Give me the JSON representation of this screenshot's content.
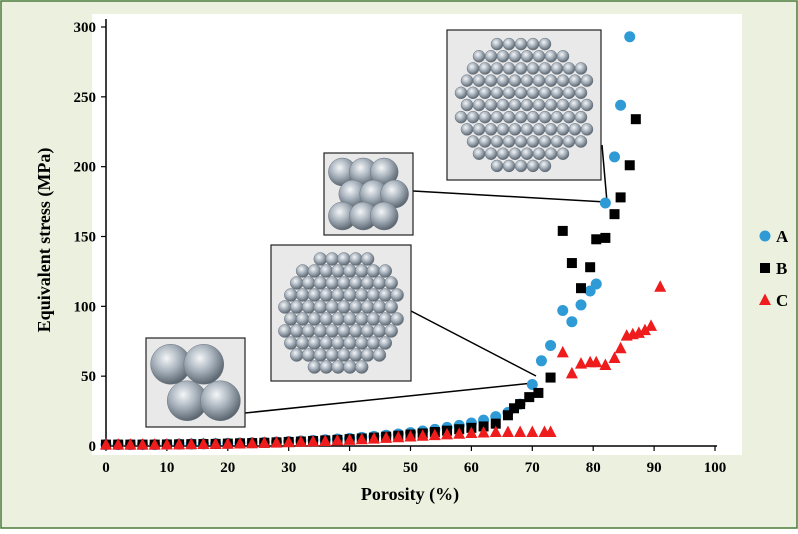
{
  "chart_data": {
    "type": "scatter",
    "xlabel": "Porosity (%)",
    "ylabel": "Equivalent stress (MPa)",
    "xlim": [
      0,
      100
    ],
    "xticks": [
      0,
      10,
      20,
      30,
      40,
      50,
      60,
      70,
      80,
      90,
      100
    ],
    "ylim": [
      0,
      300
    ],
    "yticks": [
      0,
      50,
      100,
      150,
      200,
      250,
      300
    ],
    "grid": false,
    "legend": "right",
    "series": [
      {
        "name": "A",
        "color": "#2e9bd6",
        "marker": "circle",
        "x": [
          0,
          2,
          4,
          6,
          8,
          10,
          12,
          14,
          16,
          18,
          20,
          22,
          24,
          26,
          28,
          30,
          32,
          34,
          36,
          38,
          40,
          42,
          44,
          46,
          48,
          50,
          52,
          54,
          56,
          58,
          60,
          62,
          64,
          66,
          68,
          70,
          71.5,
          73,
          75,
          76.5,
          78,
          79.5,
          80.5,
          82,
          83.5,
          84.5,
          86
        ],
        "values": [
          1,
          1,
          1,
          1,
          1,
          1.2,
          1.3,
          1.4,
          1.5,
          1.7,
          1.9,
          2.1,
          2.3,
          2.6,
          2.9,
          3.2,
          3.6,
          4,
          4.5,
          5,
          5.5,
          6.2,
          6.9,
          7.7,
          8.6,
          9.6,
          10.7,
          11.9,
          13.3,
          14.8,
          16.5,
          18.5,
          21,
          24,
          30,
          44,
          61,
          72,
          97,
          89,
          101,
          111,
          116,
          174,
          207,
          244,
          293
        ]
      },
      {
        "name": "B",
        "color": "#000000",
        "marker": "square",
        "x": [
          0,
          2,
          4,
          6,
          8,
          10,
          12,
          14,
          16,
          18,
          20,
          22,
          24,
          26,
          28,
          30,
          32,
          34,
          36,
          38,
          40,
          42,
          44,
          46,
          48,
          50,
          52,
          54,
          56,
          58,
          60,
          62,
          64,
          66,
          67,
          68,
          69.5,
          71,
          73,
          75,
          76.5,
          78,
          79.5,
          80.5,
          82,
          83.5,
          84.5,
          86,
          87
        ],
        "values": [
          1,
          1,
          1,
          1,
          1,
          1.1,
          1.2,
          1.3,
          1.4,
          1.5,
          1.7,
          1.9,
          2.1,
          2.3,
          2.6,
          2.9,
          3.2,
          3.6,
          4,
          4.4,
          4.9,
          5.4,
          6,
          6.7,
          7.4,
          8.2,
          9,
          10,
          11,
          12,
          13,
          14,
          16,
          22,
          27,
          30,
          35,
          38,
          49,
          154,
          131,
          113,
          128,
          148,
          149,
          166,
          178,
          201,
          234
        ]
      },
      {
        "name": "C",
        "color": "#ee1c1c",
        "marker": "triangle",
        "x": [
          0,
          2,
          4,
          6,
          8,
          10,
          12,
          14,
          16,
          18,
          20,
          22,
          24,
          26,
          28,
          30,
          32,
          34,
          36,
          38,
          40,
          42,
          44,
          46,
          48,
          50,
          52,
          54,
          56,
          58,
          60,
          62,
          64,
          66,
          68,
          70,
          72,
          73,
          75,
          76.5,
          78,
          79.5,
          80.5,
          82,
          83.5,
          84.5,
          85.5,
          86.5,
          87.5,
          88.5,
          89.5,
          91
        ],
        "values": [
          1,
          1,
          1,
          1,
          1,
          1.1,
          1.2,
          1.3,
          1.4,
          1.5,
          1.6,
          1.8,
          2,
          2.2,
          2.4,
          2.7,
          3,
          3.3,
          3.6,
          4,
          4.4,
          4.8,
          5.3,
          5.8,
          6.3,
          6.8,
          7.3,
          7.8,
          8.3,
          8.8,
          9.3,
          9.7,
          10,
          10,
          10,
          10,
          10,
          10,
          67,
          52,
          59,
          60,
          60,
          58,
          63,
          70,
          79,
          80,
          81,
          83,
          86,
          114
        ]
      }
    ]
  }
}
